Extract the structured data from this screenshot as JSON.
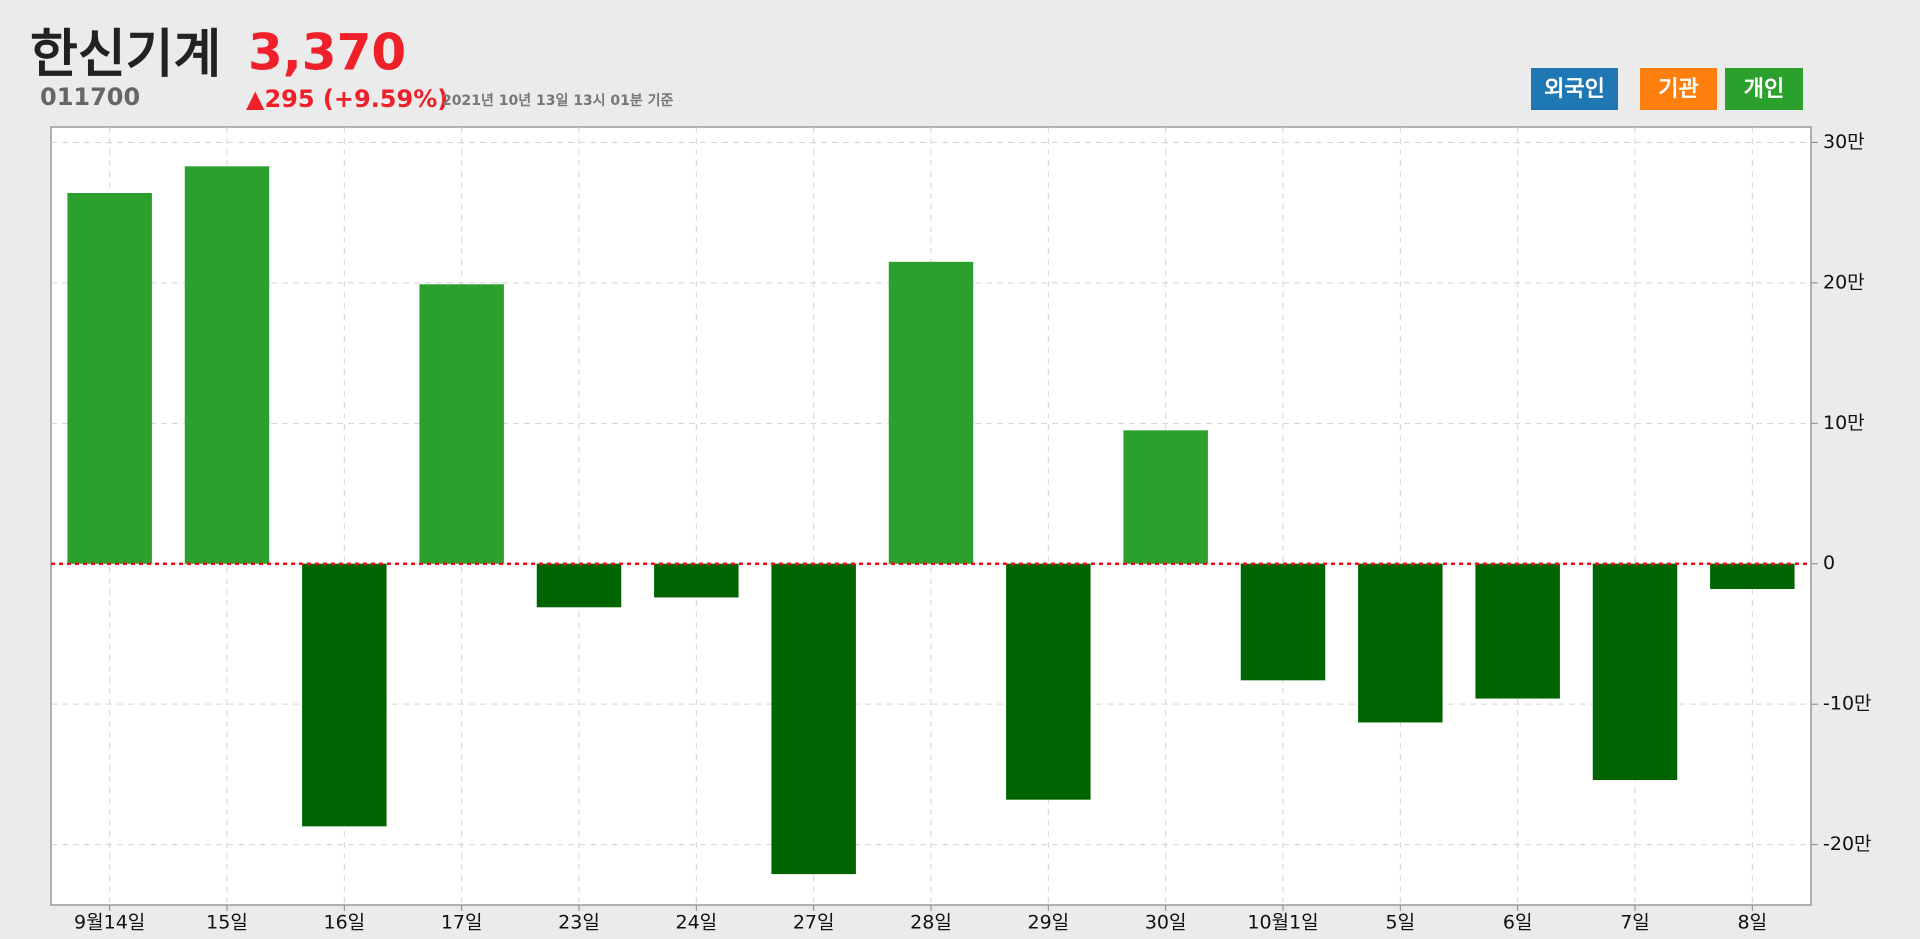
{
  "header": {
    "title": "한신기계",
    "price": "3,370",
    "code": "011700",
    "change": "▲295 (+9.59%)",
    "timestamp": "2021년 10년 13일 13시 01분 기준"
  },
  "tabs": [
    {
      "label": "외국인",
      "color": "#1f77b4"
    },
    {
      "label": "기관",
      "color": "#ff7f0e"
    },
    {
      "label": "개인",
      "color": "#2ca02c"
    }
  ],
  "chart_data": {
    "type": "bar",
    "categories": [
      "9월14일",
      "15일",
      "16일",
      "17일",
      "23일",
      "24일",
      "27일",
      "28일",
      "29일",
      "30일",
      "10월1일",
      "5일",
      "6일",
      "7일",
      "8일"
    ],
    "values": [
      264000,
      283000,
      -187000,
      199000,
      -31000,
      -24000,
      -221000,
      215000,
      -168000,
      95000,
      -83000,
      -113000,
      -96000,
      -154000,
      -18000
    ],
    "positive_color": "#2ca02c",
    "negative_color": "#006400",
    "ylim": [
      -243000,
      311000
    ],
    "yticks": [
      {
        "value": -200000,
        "label": "-20만"
      },
      {
        "value": -100000,
        "label": "-10만"
      },
      0,
      {
        "value": 100000,
        "label": "10만"
      },
      {
        "value": 200000,
        "label": "20만"
      },
      {
        "value": 300000,
        "label": "30만"
      }
    ],
    "grid": true
  }
}
